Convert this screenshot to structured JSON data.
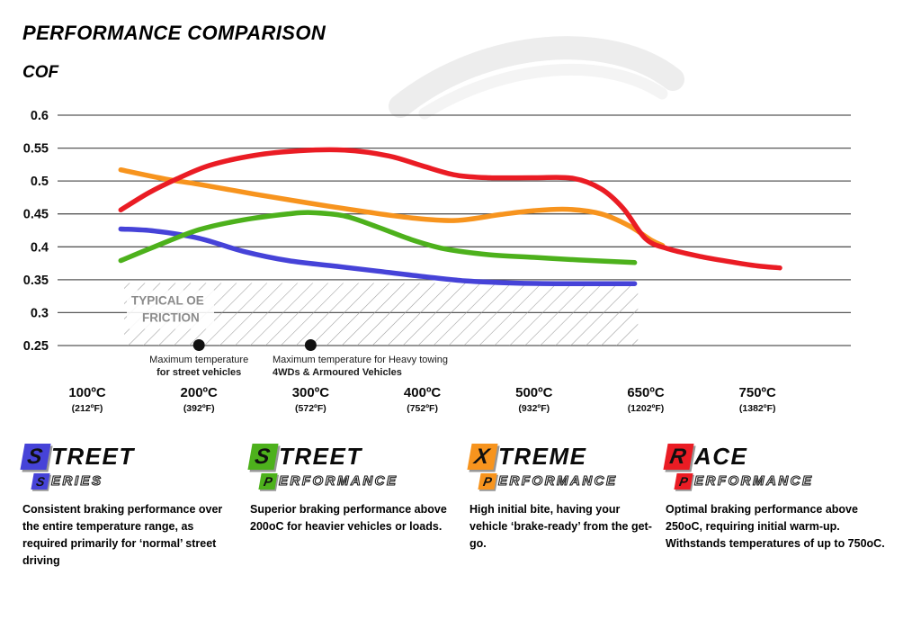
{
  "page": {
    "title": "PERFORMANCE COMPARISON",
    "y_axis_title": "COF"
  },
  "chart_data": {
    "type": "line",
    "title": "PERFORMANCE COMPARISON",
    "ylabel": "COF",
    "ylim": [
      0.25,
      0.6
    ],
    "yticks": [
      0.6,
      0.55,
      0.5,
      0.45,
      0.4,
      0.35,
      0.3,
      0.25
    ],
    "grid": true,
    "x_categories": [
      {
        "c": "100ºC",
        "f": "(212ºF)"
      },
      {
        "c": "200ºC",
        "f": "(392ºF)"
      },
      {
        "c": "300ºC",
        "f": "(572ºF)"
      },
      {
        "c": "400ºC",
        "f": "(752ºF)"
      },
      {
        "c": "500ºC",
        "f": "(932ºF)"
      },
      {
        "c": "650ºC",
        "f": "(1202ºF)"
      },
      {
        "c": "750ºC",
        "f": "(1382ºF)"
      }
    ],
    "series": [
      {
        "id": "street-series",
        "name": "Street Series",
        "color": "#4643d8",
        "points": [
          [
            0.3,
            0.427
          ],
          [
            0.6,
            0.424
          ],
          [
            1,
            0.413
          ],
          [
            1.4,
            0.393
          ],
          [
            1.8,
            0.379
          ],
          [
            2.2,
            0.371
          ],
          [
            2.6,
            0.363
          ],
          [
            3,
            0.355
          ],
          [
            3.4,
            0.348
          ],
          [
            3.8,
            0.345
          ],
          [
            4.2,
            0.344
          ],
          [
            4.6,
            0.344
          ],
          [
            4.9,
            0.344
          ]
        ]
      },
      {
        "id": "street-performance",
        "name": "Street Performance",
        "color": "#4db11c",
        "points": [
          [
            0.3,
            0.379
          ],
          [
            0.6,
            0.4
          ],
          [
            1,
            0.426
          ],
          [
            1.4,
            0.441
          ],
          [
            1.8,
            0.45
          ],
          [
            2,
            0.452
          ],
          [
            2.3,
            0.447
          ],
          [
            2.6,
            0.43
          ],
          [
            2.9,
            0.411
          ],
          [
            3.2,
            0.397
          ],
          [
            3.6,
            0.388
          ],
          [
            4,
            0.384
          ],
          [
            4.4,
            0.38
          ],
          [
            4.9,
            0.376
          ]
        ]
      },
      {
        "id": "xtreme-performance",
        "name": "Xtreme Performance",
        "color": "#f7941e",
        "points": [
          [
            0.3,
            0.517
          ],
          [
            0.7,
            0.503
          ],
          [
            1,
            0.495
          ],
          [
            1.5,
            0.48
          ],
          [
            2,
            0.466
          ],
          [
            2.5,
            0.453
          ],
          [
            2.9,
            0.444
          ],
          [
            3.3,
            0.44
          ],
          [
            3.7,
            0.449
          ],
          [
            4,
            0.455
          ],
          [
            4.3,
            0.457
          ],
          [
            4.6,
            0.45
          ],
          [
            4.85,
            0.432
          ],
          [
            5.05,
            0.41
          ],
          [
            5.15,
            0.402
          ]
        ]
      },
      {
        "id": "race-performance",
        "name": "Race Performance",
        "color": "#ea1c24",
        "points": [
          [
            0.3,
            0.456
          ],
          [
            0.55,
            0.482
          ],
          [
            0.8,
            0.503
          ],
          [
            1.1,
            0.524
          ],
          [
            1.5,
            0.539
          ],
          [
            1.9,
            0.546
          ],
          [
            2.3,
            0.547
          ],
          [
            2.7,
            0.538
          ],
          [
            3,
            0.523
          ],
          [
            3.3,
            0.509
          ],
          [
            3.6,
            0.505
          ],
          [
            4,
            0.505
          ],
          [
            4.35,
            0.504
          ],
          [
            4.6,
            0.488
          ],
          [
            4.8,
            0.458
          ],
          [
            5,
            0.412
          ],
          [
            5.2,
            0.397
          ],
          [
            5.5,
            0.385
          ],
          [
            5.8,
            0.376
          ],
          [
            6,
            0.371
          ],
          [
            6.2,
            0.368
          ]
        ]
      }
    ],
    "oe_band": {
      "label_line1": "TYPICAL OE",
      "label_line2": "FRICTION",
      "x_from_slot": 0.33,
      "x_to_slot": 4.93,
      "cof_top": 0.345,
      "cof_bottom": 0.25
    },
    "annotations": [
      {
        "slot": 1,
        "align": "center",
        "line1": "Maximum temperature",
        "line2": "for street vehicles"
      },
      {
        "slot": 2,
        "align": "left",
        "text_x": 303,
        "line1": "Maximum temperature for Heavy towing",
        "line2": "4WDs & Armoured Vehicles"
      }
    ]
  },
  "legend": [
    {
      "brand_initial": "S",
      "brand_rest": "TREET",
      "sub_initial": "S",
      "sub_rest": "ERIES",
      "color": "#4643d8",
      "description": "Consistent braking performance over the entire temperature range, as required primarily for ‘normal’ street driving"
    },
    {
      "brand_initial": "S",
      "brand_rest": "TREET",
      "sub_initial": "P",
      "sub_rest": "ERFORMANCE",
      "color": "#4db11c",
      "description": "Superior braking performance above 200oC for heavier vehicles or loads."
    },
    {
      "brand_initial": "X",
      "brand_rest": "TREME",
      "sub_initial": "P",
      "sub_rest": "ERFORMANCE",
      "color": "#f7941e",
      "description": "High initial bite, having your vehicle ‘brake-ready’ from the get-go."
    },
    {
      "brand_initial": "R",
      "brand_rest": "ACE",
      "sub_initial": "P",
      "sub_rest": "ERFORMANCE",
      "color": "#ea1c24",
      "description": "Optimal braking performance above 250oC, requiring initial warm-up. Withstands temperatures of up to 750oC."
    }
  ]
}
